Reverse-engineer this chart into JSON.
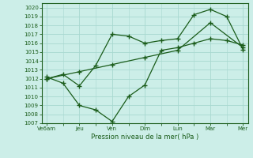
{
  "title": "",
  "xlabel": "Pression niveau de la mer( hPa )",
  "ylabel": "",
  "bg_color": "#cceee8",
  "grid_color": "#a8d8d0",
  "line_color": "#1a5c1a",
  "x_labels": [
    "Ve6am",
    "Jeu",
    "Ven",
    "Dim",
    "Lun",
    "Mar",
    "Mer"
  ],
  "x_positions": [
    0,
    1,
    2,
    3,
    4,
    5,
    6
  ],
  "ylim": [
    1007,
    1020.5
  ],
  "yticks": [
    1007,
    1008,
    1009,
    1010,
    1011,
    1012,
    1013,
    1014,
    1015,
    1016,
    1017,
    1018,
    1019,
    1020
  ],
  "line1_x": [
    0,
    0.5,
    1.0,
    1.5,
    2.0,
    2.5,
    3.0,
    3.5,
    4.0,
    4.5,
    5.0,
    5.5,
    6.0
  ],
  "line1_y": [
    1012.0,
    1012.5,
    1011.2,
    1013.5,
    1017.0,
    1016.8,
    1016.0,
    1016.3,
    1016.5,
    1019.2,
    1019.8,
    1019.0,
    1015.3
  ],
  "line2_x": [
    0,
    0.5,
    1.0,
    1.5,
    2.0,
    2.5,
    3.0,
    3.5,
    4.0,
    4.5,
    5.0,
    5.5,
    6.0
  ],
  "line2_y": [
    1012.2,
    1011.5,
    1009.0,
    1008.5,
    1007.2,
    1010.0,
    1011.3,
    1015.2,
    1015.5,
    1016.0,
    1016.5,
    1016.3,
    1015.8
  ],
  "line3_x": [
    0,
    1,
    2,
    3,
    4,
    5,
    6
  ],
  "line3_y": [
    1012.0,
    1012.8,
    1013.6,
    1014.4,
    1015.2,
    1018.3,
    1015.5
  ]
}
